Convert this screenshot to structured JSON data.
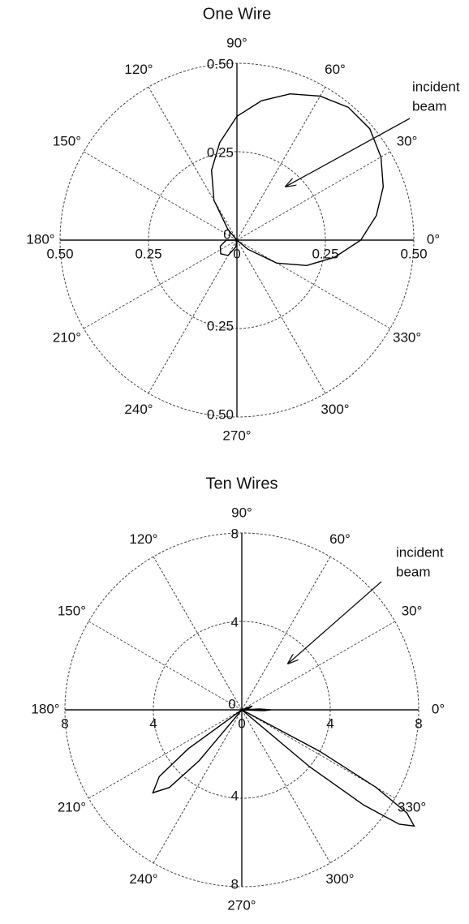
{
  "chart_data": [
    {
      "type": "polar",
      "title": "One Wire",
      "annotation": [
        "incident",
        "beam"
      ],
      "rlim": [
        0,
        0.5
      ],
      "rticks": [
        0,
        0.25,
        {
          "value": 0.5,
          "label": "0.50"
        }
      ],
      "thetaticks": [
        {
          "value": 0,
          "label": "0°"
        },
        {
          "value": 30,
          "label": "30°"
        },
        {
          "value": 60,
          "label": "60°"
        },
        {
          "value": 90,
          "label": "90°"
        },
        {
          "value": 120,
          "label": "120°"
        },
        {
          "value": 150,
          "label": "150°"
        },
        {
          "value": 180,
          "label": "180°"
        },
        {
          "value": 210,
          "label": "210°"
        },
        {
          "value": 240,
          "label": "240°"
        },
        {
          "value": 270,
          "label": "270°"
        },
        {
          "value": 300,
          "label": "300°"
        },
        {
          "value": 330,
          "label": "330°"
        }
      ],
      "color": "#000000",
      "theta": [
        -45,
        -40,
        -30,
        -20,
        -10,
        0,
        10,
        20,
        30,
        40,
        50,
        60,
        70,
        80,
        90,
        100,
        110,
        120,
        130,
        135,
        180,
        200,
        220,
        240,
        260,
        270
      ],
      "r": [
        0,
        0.04,
        0.13,
        0.21,
        0.28,
        0.35,
        0.4,
        0.44,
        0.47,
        0.49,
        0.49,
        0.47,
        0.44,
        0.4,
        0.35,
        0.28,
        0.21,
        0.13,
        0.04,
        0,
        0.03,
        0.05,
        0.06,
        0.05,
        0.02,
        0
      ]
    },
    {
      "type": "polar",
      "title": "Ten Wires",
      "annotation": [
        "incident",
        "beam"
      ],
      "rlim": [
        0,
        8
      ],
      "rticks": [
        0,
        4,
        8
      ],
      "thetaticks": [
        {
          "value": 0,
          "label": "0°"
        },
        {
          "value": 30,
          "label": "30°"
        },
        {
          "value": 60,
          "label": "60°"
        },
        {
          "value": 90,
          "label": "90°"
        },
        {
          "value": 120,
          "label": "120°"
        },
        {
          "value": 150,
          "label": "150°"
        },
        {
          "value": 180,
          "label": "180°"
        },
        {
          "value": 210,
          "label": "210°"
        },
        {
          "value": 240,
          "label": "240°"
        },
        {
          "value": 270,
          "label": "270°"
        },
        {
          "value": 300,
          "label": "300°"
        },
        {
          "value": 330,
          "label": "330°"
        }
      ],
      "color": "#000000",
      "theta": [
        20,
        10,
        6,
        3,
        0,
        -2,
        -5,
        -25,
        -28,
        -30,
        -32,
        -34,
        -36,
        -38,
        -40,
        -43,
        212,
        216,
        219,
        223,
        227,
        230,
        234
      ],
      "r": [
        0.5,
        0.3,
        0,
        0.8,
        1.3,
        1.0,
        0,
        0,
        4,
        7,
        8.8,
        9.4,
        8.8,
        7,
        4,
        0,
        0,
        3,
        4.8,
        5.5,
        4.8,
        3,
        0
      ]
    }
  ]
}
